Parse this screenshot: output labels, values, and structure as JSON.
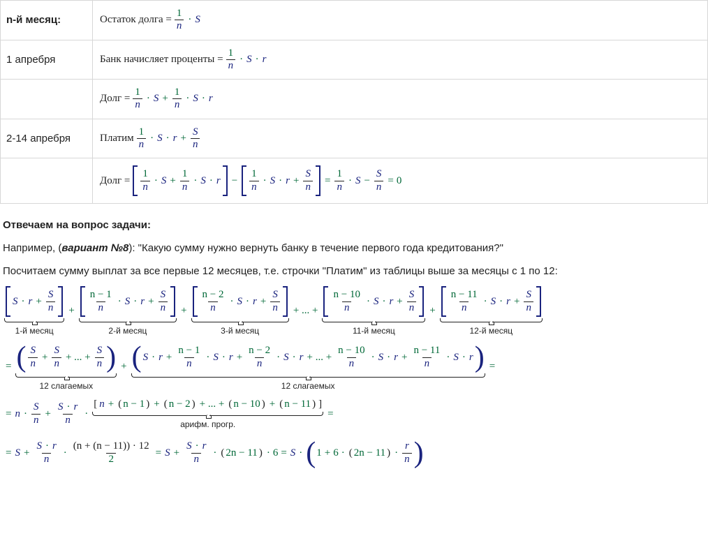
{
  "colors": {
    "var": "#1a237e",
    "op": "#006837",
    "border": "#d7d7d7",
    "text": "#222222",
    "bg": "#ffffff"
  },
  "table": {
    "rows": [
      {
        "label": "n-й месяц:",
        "label_bold": true,
        "pre": "Остаток долга = "
      },
      {
        "label": "1 апребря",
        "pre": "Банк начисляет проценты = "
      },
      {
        "label": "",
        "pre": "Долг = "
      },
      {
        "label": "2-14 апребря",
        "pre": "Платим "
      },
      {
        "label": "",
        "pre": "Долг = "
      }
    ]
  },
  "heading": "Отвечаем на вопрос задачи:",
  "p1_a": "Например, (",
  "p1_b": "вариант №8",
  "p1_c": "): \"Какую сумму нужно вернуть банку в течение первого года кредитования?\"",
  "p2": "Посчитаем сумму выплат за все первые 12 месяцев, т.е. строчки \"Платим\" из таблицы выше за месяцы с 1 по 12:",
  "ub": {
    "m1": "1-й месяц",
    "m2": "2-й месяц",
    "m3": "3-й месяц",
    "m11": "11-й месяц",
    "m12": "12-й месяц",
    "s12a": "12 слагаемых",
    "s12b": "12 слагаемых",
    "ap": "арифм. прогр."
  },
  "math": {
    "S": "S",
    "r": "r",
    "n": "n",
    "one": "1",
    "two": "2",
    "six": "6",
    "ten": "10",
    "eleven": "11",
    "twelve": "12",
    "zero": "0",
    "nminus1": "n − 1",
    "nminus2": "n − 2",
    "nminus10": "n − 10",
    "nminus11": "n − 11",
    "twon_m11": "2n − 11",
    "dots": "...",
    "plusdots": "+ ... +",
    "eq": "=",
    "plus": "+",
    "minus": "−",
    "cdot": "·",
    "np_nm11_x12": "(n + (n − 11)) · 12"
  }
}
